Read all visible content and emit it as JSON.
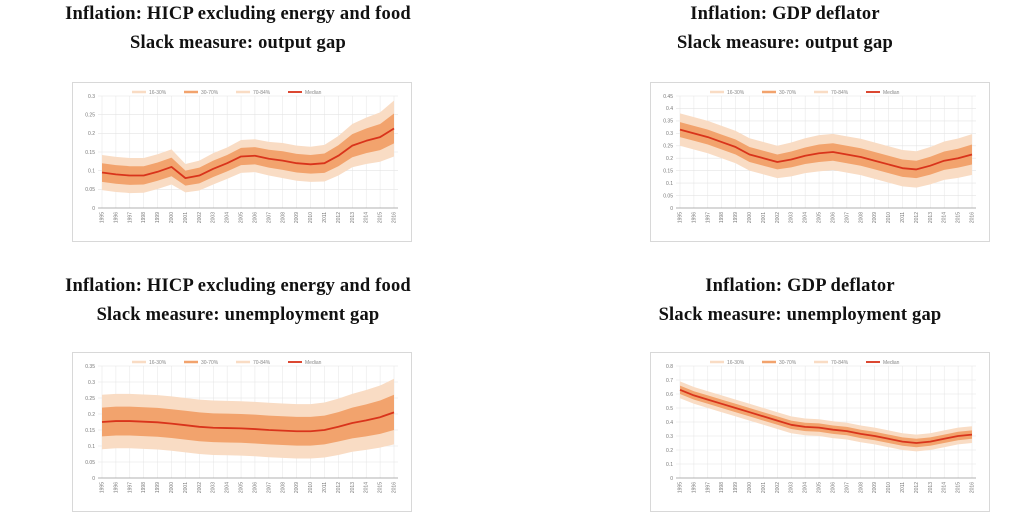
{
  "colors": {
    "band_16_84": "#f9dcc4",
    "band_30_70": "#f2a36d",
    "median": "#d9341b",
    "grid": "#e4e4e4",
    "axis": "#9a9a9a"
  },
  "titles": [
    {
      "line1": "Inflation: HICP excluding energy and food",
      "line2": "Slack measure: output gap"
    },
    {
      "line1": "Inflation: GDP deflator",
      "line2": "Slack measure: output gap"
    },
    {
      "line1": "Inflation: HICP excluding energy and food",
      "line2": "Slack measure: unemployment gap"
    },
    {
      "line1": "Inflation: GDP deflator",
      "line2": "Slack measure: unemployment gap"
    }
  ],
  "legend": [
    "16-30%",
    "30-70%",
    "70-84%",
    "Median"
  ],
  "chart_data": [
    {
      "type": "area",
      "ylim": [
        0,
        0.3
      ],
      "yticks": [
        "0",
        "0.05",
        "0.1",
        "0.15",
        "0.2",
        "0.25",
        "0.3"
      ],
      "ytick_values": [
        0,
        0.05,
        0.1,
        0.15,
        0.2,
        0.25,
        0.3
      ],
      "categories": [
        "1995",
        "1996",
        "1997",
        "1998",
        "1999",
        "2000",
        "2001",
        "2002",
        "2003",
        "2004",
        "2005",
        "2006",
        "2007",
        "2008",
        "2009",
        "2010",
        "2011",
        "2012",
        "2013",
        "2014",
        "2015",
        "2016"
      ],
      "series": [
        {
          "name": "Median",
          "values": [
            0.095,
            0.09,
            0.087,
            0.087,
            0.097,
            0.11,
            0.08,
            0.087,
            0.105,
            0.12,
            0.138,
            0.14,
            0.132,
            0.127,
            0.12,
            0.117,
            0.12,
            0.14,
            0.167,
            0.18,
            0.19,
            0.213
          ]
        },
        {
          "name": "30-70%",
          "lower": [
            0.07,
            0.065,
            0.062,
            0.063,
            0.073,
            0.085,
            0.06,
            0.066,
            0.083,
            0.098,
            0.115,
            0.117,
            0.108,
            0.102,
            0.095,
            0.092,
            0.094,
            0.112,
            0.136,
            0.147,
            0.155,
            0.173
          ],
          "upper": [
            0.12,
            0.115,
            0.112,
            0.112,
            0.122,
            0.135,
            0.1,
            0.108,
            0.127,
            0.142,
            0.161,
            0.163,
            0.156,
            0.152,
            0.145,
            0.142,
            0.146,
            0.168,
            0.198,
            0.213,
            0.225,
            0.253
          ]
        },
        {
          "name": "16-84%",
          "lower": [
            0.048,
            0.043,
            0.04,
            0.041,
            0.051,
            0.063,
            0.042,
            0.047,
            0.063,
            0.078,
            0.094,
            0.096,
            0.087,
            0.08,
            0.073,
            0.07,
            0.071,
            0.087,
            0.109,
            0.118,
            0.124,
            0.138
          ],
          "upper": [
            0.142,
            0.137,
            0.134,
            0.134,
            0.144,
            0.157,
            0.118,
            0.127,
            0.147,
            0.162,
            0.182,
            0.184,
            0.177,
            0.174,
            0.167,
            0.164,
            0.169,
            0.193,
            0.225,
            0.242,
            0.256,
            0.288
          ]
        }
      ]
    },
    {
      "type": "area",
      "ylim": [
        0,
        0.45
      ],
      "yticks": [
        "0",
        "0.05",
        "0.1",
        "0.15",
        "0.2",
        "0.25",
        "0.3",
        "0.35",
        "0.4",
        "0.45"
      ],
      "ytick_values": [
        0,
        0.05,
        0.1,
        0.15,
        0.2,
        0.25,
        0.3,
        0.35,
        0.4,
        0.45
      ],
      "categories": [
        "1995",
        "1996",
        "1997",
        "1998",
        "1999",
        "2000",
        "2001",
        "2002",
        "2003",
        "2004",
        "2005",
        "2006",
        "2007",
        "2008",
        "2009",
        "2010",
        "2011",
        "2012",
        "2013",
        "2014",
        "2015",
        "2016"
      ],
      "series": [
        {
          "name": "Median",
          "values": [
            0.315,
            0.3,
            0.285,
            0.265,
            0.245,
            0.215,
            0.2,
            0.185,
            0.195,
            0.21,
            0.22,
            0.225,
            0.215,
            0.205,
            0.19,
            0.175,
            0.16,
            0.155,
            0.17,
            0.19,
            0.2,
            0.215
          ]
        },
        {
          "name": "30-70%",
          "lower": [
            0.285,
            0.27,
            0.255,
            0.235,
            0.215,
            0.185,
            0.17,
            0.155,
            0.163,
            0.177,
            0.185,
            0.19,
            0.18,
            0.17,
            0.155,
            0.14,
            0.125,
            0.12,
            0.134,
            0.153,
            0.162,
            0.175
          ],
          "upper": [
            0.345,
            0.33,
            0.315,
            0.295,
            0.275,
            0.245,
            0.23,
            0.215,
            0.227,
            0.243,
            0.255,
            0.26,
            0.25,
            0.24,
            0.225,
            0.21,
            0.195,
            0.19,
            0.206,
            0.227,
            0.238,
            0.255
          ]
        },
        {
          "name": "16-84%",
          "lower": [
            0.25,
            0.235,
            0.22,
            0.2,
            0.18,
            0.15,
            0.135,
            0.12,
            0.127,
            0.14,
            0.147,
            0.152,
            0.142,
            0.132,
            0.117,
            0.102,
            0.087,
            0.082,
            0.095,
            0.113,
            0.121,
            0.133
          ],
          "upper": [
            0.38,
            0.365,
            0.35,
            0.33,
            0.31,
            0.28,
            0.265,
            0.25,
            0.263,
            0.28,
            0.293,
            0.298,
            0.288,
            0.278,
            0.263,
            0.248,
            0.233,
            0.228,
            0.245,
            0.267,
            0.279,
            0.297
          ]
        }
      ]
    },
    {
      "type": "area",
      "ylim": [
        0,
        0.35
      ],
      "yticks": [
        "0",
        "0.05",
        "0.1",
        "0.15",
        "0.2",
        "0.25",
        "0.3",
        "0.35"
      ],
      "ytick_values": [
        0,
        0.05,
        0.1,
        0.15,
        0.2,
        0.25,
        0.3,
        0.35
      ],
      "categories": [
        "1995",
        "1996",
        "1997",
        "1998",
        "1999",
        "2000",
        "2001",
        "2002",
        "2003",
        "2004",
        "2005",
        "2006",
        "2007",
        "2008",
        "2009",
        "2010",
        "2011",
        "2012",
        "2013",
        "2014",
        "2015",
        "2016"
      ],
      "series": [
        {
          "name": "Median",
          "values": [
            0.175,
            0.178,
            0.178,
            0.176,
            0.174,
            0.17,
            0.165,
            0.16,
            0.157,
            0.156,
            0.155,
            0.153,
            0.15,
            0.148,
            0.146,
            0.146,
            0.15,
            0.16,
            0.172,
            0.18,
            0.19,
            0.205
          ]
        },
        {
          "name": "30-70%",
          "lower": [
            0.13,
            0.133,
            0.133,
            0.131,
            0.129,
            0.125,
            0.12,
            0.115,
            0.112,
            0.111,
            0.11,
            0.108,
            0.105,
            0.103,
            0.101,
            0.101,
            0.105,
            0.114,
            0.124,
            0.13,
            0.138,
            0.15
          ],
          "upper": [
            0.22,
            0.223,
            0.223,
            0.221,
            0.219,
            0.215,
            0.21,
            0.205,
            0.202,
            0.201,
            0.2,
            0.198,
            0.195,
            0.193,
            0.191,
            0.191,
            0.195,
            0.206,
            0.22,
            0.23,
            0.242,
            0.26
          ]
        },
        {
          "name": "16-84%",
          "lower": [
            0.09,
            0.093,
            0.093,
            0.091,
            0.089,
            0.085,
            0.08,
            0.075,
            0.072,
            0.071,
            0.07,
            0.068,
            0.065,
            0.063,
            0.061,
            0.061,
            0.064,
            0.072,
            0.082,
            0.088,
            0.095,
            0.105
          ],
          "upper": [
            0.26,
            0.263,
            0.263,
            0.261,
            0.259,
            0.255,
            0.25,
            0.245,
            0.242,
            0.241,
            0.24,
            0.238,
            0.235,
            0.233,
            0.231,
            0.231,
            0.236,
            0.248,
            0.263,
            0.275,
            0.289,
            0.31
          ]
        }
      ]
    },
    {
      "type": "area",
      "ylim": [
        0,
        0.8
      ],
      "yticks": [
        "0",
        "0.1",
        "0.2",
        "0.3",
        "0.4",
        "0.5",
        "0.6",
        "0.7",
        "0.8"
      ],
      "ytick_values": [
        0,
        0.1,
        0.2,
        0.3,
        0.4,
        0.5,
        0.6,
        0.7,
        0.8
      ],
      "categories": [
        "1995",
        "1996",
        "1997",
        "1998",
        "1999",
        "2000",
        "2001",
        "2002",
        "2003",
        "2004",
        "2005",
        "2006",
        "2007",
        "2008",
        "2009",
        "2010",
        "2011",
        "2012",
        "2013",
        "2014",
        "2015",
        "2016"
      ],
      "series": [
        {
          "name": "Median",
          "values": [
            0.63,
            0.59,
            0.56,
            0.53,
            0.5,
            0.47,
            0.44,
            0.41,
            0.38,
            0.365,
            0.36,
            0.345,
            0.335,
            0.315,
            0.3,
            0.28,
            0.26,
            0.25,
            0.26,
            0.28,
            0.3,
            0.31
          ]
        },
        {
          "name": "30-70%",
          "lower": [
            0.6,
            0.56,
            0.53,
            0.5,
            0.47,
            0.44,
            0.41,
            0.38,
            0.35,
            0.335,
            0.33,
            0.315,
            0.305,
            0.285,
            0.27,
            0.25,
            0.23,
            0.22,
            0.23,
            0.25,
            0.27,
            0.28
          ],
          "upper": [
            0.66,
            0.62,
            0.59,
            0.56,
            0.53,
            0.5,
            0.47,
            0.44,
            0.41,
            0.395,
            0.39,
            0.375,
            0.365,
            0.345,
            0.33,
            0.31,
            0.29,
            0.28,
            0.29,
            0.31,
            0.33,
            0.34
          ]
        },
        {
          "name": "16-84%",
          "lower": [
            0.57,
            0.53,
            0.5,
            0.47,
            0.44,
            0.41,
            0.38,
            0.35,
            0.32,
            0.305,
            0.3,
            0.285,
            0.275,
            0.255,
            0.24,
            0.22,
            0.2,
            0.19,
            0.2,
            0.22,
            0.24,
            0.25
          ],
          "upper": [
            0.69,
            0.65,
            0.62,
            0.59,
            0.56,
            0.53,
            0.5,
            0.47,
            0.44,
            0.425,
            0.42,
            0.405,
            0.395,
            0.375,
            0.36,
            0.34,
            0.32,
            0.31,
            0.32,
            0.34,
            0.36,
            0.37
          ]
        }
      ]
    }
  ]
}
